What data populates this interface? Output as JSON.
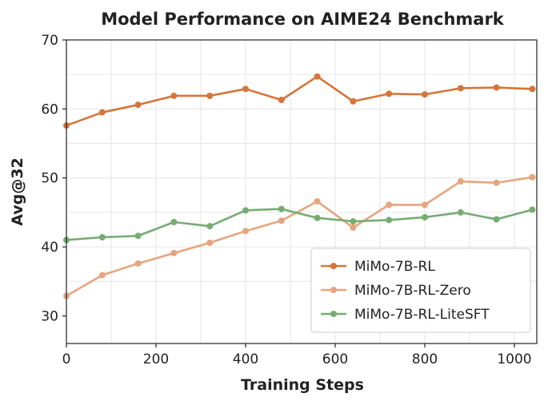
{
  "chart_data": {
    "type": "line",
    "title": "Model Performance on AIME24 Benchmark",
    "xlabel": "Training Steps",
    "ylabel": "Avg@32",
    "xlim": [
      0,
      1050
    ],
    "ylim": [
      26,
      70
    ],
    "xticks": [
      0,
      200,
      400,
      600,
      800,
      1000
    ],
    "yticks": [
      30,
      40,
      50,
      60,
      70
    ],
    "grid": true,
    "legend_position": "bottom-right",
    "x": [
      0,
      80,
      160,
      240,
      320,
      400,
      480,
      560,
      640,
      720,
      800,
      880,
      960,
      1040
    ],
    "series": [
      {
        "name": "MiMo-7B-RL",
        "color": "#d6743a",
        "values": [
          57.6,
          59.5,
          60.6,
          61.9,
          61.9,
          62.9,
          61.3,
          64.7,
          61.1,
          62.2,
          62.1,
          63.0,
          63.1,
          62.9
        ]
      },
      {
        "name": "MiMo-7B-RL-Zero",
        "color": "#e6a57d",
        "values": [
          32.9,
          35.9,
          37.6,
          39.1,
          40.6,
          42.3,
          43.8,
          46.6,
          42.8,
          46.1,
          46.1,
          49.5,
          49.3,
          50.1
        ]
      },
      {
        "name": "MiMo-7B-RL-LiteSFT",
        "color": "#76ac72",
        "values": [
          41.0,
          41.4,
          41.6,
          43.6,
          43.0,
          45.3,
          45.5,
          44.2,
          43.7,
          43.9,
          44.3,
          45.0,
          44.0,
          45.4
        ]
      }
    ]
  }
}
